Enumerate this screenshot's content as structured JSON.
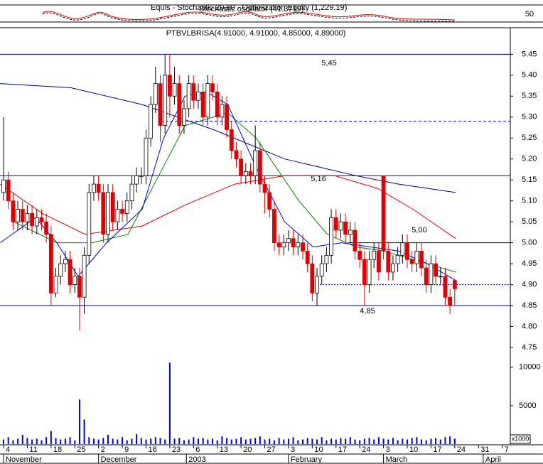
{
  "chart_data": {
    "type": "candlestick",
    "title": "PTBVLBRISA(4.91000, 4.91000, 4.85000, 4.89000)",
    "indicator_titles": [
      "Equis - Stochastic 20,00 - Optimization Equity (1,229,19)",
      "Stochastic oscillator (41.3719)"
    ],
    "indicator_ticks": [
      {
        "value": 50,
        "label": "50"
      }
    ],
    "open": [
      5.12,
      5.15,
      5.1,
      5.05,
      5.08,
      5.05,
      5.07,
      5.04,
      5.06,
      5.05,
      5.02,
      4.88,
      4.92,
      4.95,
      4.96,
      4.9,
      4.92,
      4.87,
      4.97,
      5.12,
      5.14,
      5.12,
      5.02,
      5.12,
      5.05,
      5.08,
      5.07,
      5.1,
      5.14,
      5.16,
      5.16,
      5.25,
      5.33,
      5.38,
      5.28,
      5.4,
      5.35,
      5.38,
      5.28,
      5.32,
      5.38,
      5.34,
      5.36,
      5.3,
      5.38,
      5.36,
      5.3,
      5.33,
      5.27,
      5.22,
      5.2,
      5.16,
      5.17,
      5.16,
      5.22,
      5.14,
      5.12,
      5.08,
      5.0,
      4.99,
      5.0,
      5.01,
      4.99,
      5.0,
      4.98,
      4.95,
      4.88,
      4.92,
      4.95,
      4.97,
      5.06,
      5.03,
      5.05,
      5.02,
      5.03,
      4.98,
      4.96,
      4.9,
      4.96,
      4.98,
      5.16,
      4.98,
      4.93,
      4.95,
      4.97,
      5.0,
      4.96,
      4.95,
      4.98,
      4.94,
      4.9,
      4.95,
      4.92,
      4.92,
      4.87,
      4.91
    ],
    "high": [
      5.3,
      5.17,
      5.12,
      5.1,
      5.1,
      5.09,
      5.09,
      5.08,
      5.08,
      5.07,
      5.04,
      4.94,
      4.97,
      4.98,
      4.98,
      4.94,
      4.94,
      4.99,
      5.14,
      5.16,
      5.16,
      5.14,
      5.14,
      5.14,
      5.1,
      5.1,
      5.12,
      5.16,
      5.18,
      5.18,
      5.27,
      5.35,
      5.42,
      5.4,
      5.45,
      5.45,
      5.42,
      5.4,
      5.34,
      5.4,
      5.4,
      5.38,
      5.38,
      5.4,
      5.4,
      5.38,
      5.35,
      5.35,
      5.29,
      5.24,
      5.22,
      5.19,
      5.19,
      5.28,
      5.24,
      5.16,
      5.14,
      5.1,
      5.02,
      5.02,
      5.03,
      5.03,
      5.02,
      5.02,
      5.0,
      4.97,
      4.94,
      4.97,
      4.99,
      5.08,
      5.08,
      5.07,
      5.07,
      5.05,
      5.05,
      5.0,
      4.98,
      4.98,
      5.0,
      5.0,
      5.16,
      5.0,
      4.97,
      4.99,
      5.02,
      5.02,
      4.98,
      5.0,
      5.0,
      4.96,
      4.97,
      4.97,
      4.94,
      4.94,
      4.89,
      4.91
    ],
    "low": [
      5.1,
      5.08,
      5.03,
      5.03,
      5.03,
      5.03,
      5.02,
      5.02,
      5.03,
      5.0,
      4.85,
      4.87,
      4.9,
      4.93,
      4.88,
      4.88,
      4.79,
      4.83,
      4.95,
      5.1,
      5.1,
      5.0,
      5.0,
      5.03,
      5.03,
      5.05,
      5.05,
      5.08,
      5.12,
      5.14,
      5.14,
      5.23,
      5.31,
      5.24,
      5.26,
      5.3,
      5.33,
      5.26,
      5.26,
      5.3,
      5.32,
      5.32,
      5.28,
      5.28,
      5.34,
      5.28,
      5.28,
      5.25,
      5.2,
      5.18,
      5.14,
      5.14,
      5.14,
      5.14,
      5.12,
      5.07,
      5.06,
      4.98,
      4.97,
      4.97,
      4.98,
      4.97,
      4.97,
      4.96,
      4.93,
      4.86,
      4.85,
      4.9,
      4.93,
      4.95,
      5.01,
      5.01,
      5.0,
      5.0,
      4.96,
      4.94,
      4.85,
      4.88,
      4.94,
      4.91,
      4.96,
      4.91,
      4.91,
      4.93,
      4.95,
      4.94,
      4.93,
      4.93,
      4.92,
      4.88,
      4.88,
      4.9,
      4.9,
      4.85,
      4.83,
      4.85
    ],
    "close": [
      5.15,
      5.1,
      5.05,
      5.08,
      5.05,
      5.07,
      5.04,
      5.06,
      5.05,
      5.02,
      4.88,
      4.92,
      4.95,
      4.96,
      4.9,
      4.92,
      4.87,
      4.97,
      5.12,
      5.14,
      5.12,
      5.02,
      5.12,
      5.05,
      5.08,
      5.07,
      5.1,
      5.14,
      5.16,
      5.16,
      5.25,
      5.33,
      5.38,
      5.28,
      5.4,
      5.35,
      5.38,
      5.28,
      5.32,
      5.38,
      5.34,
      5.36,
      5.3,
      5.38,
      5.36,
      5.3,
      5.33,
      5.27,
      5.22,
      5.2,
      5.16,
      5.17,
      5.16,
      5.22,
      5.14,
      5.12,
      5.08,
      5.0,
      4.99,
      5.0,
      5.01,
      4.99,
      5.0,
      4.98,
      4.95,
      4.88,
      4.92,
      4.95,
      4.97,
      5.06,
      5.03,
      5.05,
      5.02,
      5.03,
      4.98,
      4.96,
      4.9,
      4.96,
      4.98,
      4.93,
      4.98,
      4.93,
      4.95,
      4.97,
      5.0,
      4.96,
      4.95,
      4.98,
      4.94,
      4.9,
      4.95,
      4.92,
      4.92,
      4.87,
      4.85,
      4.89
    ],
    "volume": [
      600,
      900,
      500,
      700,
      1200,
      800,
      600,
      700,
      500,
      900,
      1700,
      800,
      600,
      700,
      900,
      500,
      5800,
      3200,
      900,
      700,
      600,
      800,
      1200,
      700,
      600,
      900,
      500,
      700,
      1300,
      800,
      600,
      700,
      900,
      800,
      600,
      10600,
      700,
      800,
      500,
      600,
      900,
      700,
      800,
      600,
      700,
      500,
      1000,
      800,
      600,
      700,
      900,
      600,
      700,
      800,
      1000,
      600,
      700,
      500,
      800,
      600,
      700,
      900,
      500,
      600,
      800,
      700,
      600,
      900,
      500,
      700,
      600,
      800,
      700,
      900,
      600,
      500,
      700,
      800,
      600,
      900,
      700,
      600,
      800,
      500,
      700,
      600,
      800,
      900,
      600,
      500,
      700,
      800,
      600,
      900,
      1000,
      700
    ],
    "up_color": "#ffffff",
    "down_color": "#e00000",
    "moving_averages": [
      {
        "color": "#000080",
        "x": [
          -0.7,
          14.2,
          29.2,
          44.2,
          59.2,
          66.7,
          74.2,
          83.2,
          95.2
        ],
        "values": [
          5.38,
          5.37,
          5.33,
          5.27,
          5.2,
          5.18,
          5.16,
          5.14,
          5.12
        ]
      },
      {
        "color": "#e00000",
        "x": [
          -0.7,
          8.2,
          17.2,
          29.2,
          38.2,
          48.7,
          59.2,
          69.7,
          78.7,
          86.2,
          95.2
        ],
        "values": [
          5.14,
          5.07,
          5.02,
          5.04,
          5.09,
          5.14,
          5.16,
          5.16,
          5.13,
          5.08,
          5.01
        ]
      },
      {
        "color": "#008000",
        "x": [
          2.2,
          11.2,
          18.7,
          26.2,
          32.2,
          38.2,
          47.2,
          53.2,
          62.2,
          68.2,
          74.2,
          80.2,
          86.2,
          95.2
        ],
        "values": [
          5.05,
          5.0,
          5.0,
          5.02,
          5.15,
          5.28,
          5.31,
          5.25,
          5.1,
          5.02,
          4.99,
          4.98,
          4.96,
          4.93
        ]
      },
      {
        "color": "#0000e0",
        "x": [
          -0.7,
          6.7,
          11.2,
          15.7,
          21.7,
          29.2,
          33.7,
          38.2,
          42.7,
          47.2,
          53.2,
          59.2,
          65.2,
          71.2,
          77.2,
          83.2,
          89.2,
          95.2
        ],
        "values": [
          5.0,
          5.06,
          5.0,
          4.92,
          5.0,
          5.08,
          5.25,
          5.35,
          5.36,
          5.33,
          5.18,
          5.05,
          4.99,
          5.0,
          4.99,
          4.98,
          4.95,
          4.91
        ]
      }
    ],
    "levels": [
      {
        "value": 5.45,
        "label": "5,45"
      },
      {
        "value": 5.29
      },
      {
        "value": 5.16,
        "label": "5,16"
      },
      {
        "value": 5.0,
        "label": "5,00"
      },
      {
        "value": 4.9
      },
      {
        "value": 4.85,
        "label": "4,85"
      }
    ],
    "xlim": [
      -0.75,
      106.7
    ],
    "ylim": [
      4.75,
      5.51
    ],
    "y2lim": [
      0,
      11000
    ],
    "yticks": [
      {
        "value": 5.45,
        "label": "5.45"
      },
      {
        "value": 5.4,
        "label": "5.40"
      },
      {
        "value": 5.35,
        "label": "5.35"
      },
      {
        "value": 5.3,
        "label": "5.30"
      },
      {
        "value": 5.25,
        "label": "5.25"
      },
      {
        "value": 5.2,
        "label": "5.20"
      },
      {
        "value": 5.15,
        "label": "5.15"
      },
      {
        "value": 5.1,
        "label": "5.10"
      },
      {
        "value": 5.05,
        "label": "5.05"
      },
      {
        "value": 5.0,
        "label": "5.00"
      },
      {
        "value": 4.95,
        "label": "4.95"
      },
      {
        "value": 4.9,
        "label": "4.90"
      },
      {
        "value": 4.85,
        "label": "4.85"
      },
      {
        "value": 4.8,
        "label": "4.80"
      },
      {
        "value": 4.75,
        "label": "4.75"
      }
    ],
    "y2ticks": [
      10000,
      5000
    ],
    "y2_unit": "x1000",
    "xticks": [
      {
        "value": 0,
        "label": "4"
      },
      {
        "value": 5,
        "label": "11"
      },
      {
        "value": 10,
        "label": "18"
      },
      {
        "value": 15,
        "label": "25"
      },
      {
        "value": 20,
        "label": "2"
      },
      {
        "value": 25,
        "label": "9"
      },
      {
        "value": 30,
        "label": "16"
      },
      {
        "value": 35,
        "label": "23"
      },
      {
        "value": 40,
        "label": "6"
      },
      {
        "value": 45,
        "label": "13"
      },
      {
        "value": 50,
        "label": "20"
      },
      {
        "value": 55,
        "label": "27"
      },
      {
        "value": 60,
        "label": "3"
      },
      {
        "value": 65,
        "label": "10"
      },
      {
        "value": 70,
        "label": "17"
      },
      {
        "value": 75,
        "label": "24"
      },
      {
        "value": 80,
        "label": "3"
      },
      {
        "value": 85,
        "label": "10"
      },
      {
        "value": 90,
        "label": "17"
      },
      {
        "value": 95,
        "label": "24"
      },
      {
        "value": 100,
        "label": "31"
      },
      {
        "value": 105,
        "label": "7"
      }
    ],
    "period_labels": [
      {
        "value": 0,
        "label": "November"
      },
      {
        "value": 20,
        "label": "December"
      },
      {
        "value": 38.5,
        "label": "2003"
      },
      {
        "value": 60,
        "label": "February"
      },
      {
        "value": 80,
        "label": "March"
      },
      {
        "value": 101,
        "label": "April"
      }
    ]
  }
}
